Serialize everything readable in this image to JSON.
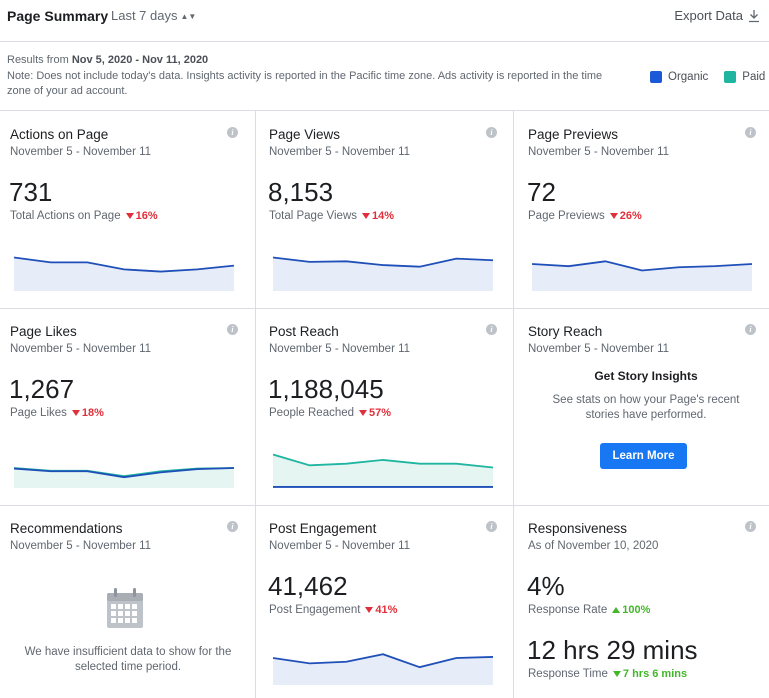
{
  "header": {
    "title": "Page Summary",
    "range": "Last 7 days",
    "export_label": "Export Data"
  },
  "note": {
    "results_prefix": "Results from",
    "results_range": "Nov 5, 2020 - Nov 11, 2020",
    "text": "Note: Does not include today's data. Insights activity is reported in the Pacific time zone. Ads activity is reported in the time zone of your ad account."
  },
  "legend": [
    {
      "label": "Organic",
      "color": "#1a5ad9"
    },
    {
      "label": "Paid",
      "color": "#1fb5a0"
    }
  ],
  "colors": {
    "organic_line": "#1f4fb8",
    "organic_fill": "#e6ecf8",
    "paid_line": "#1fb5a0",
    "paid_fill": "#e4f5f2",
    "accent": "#1877f2",
    "negative": "#e02f3a",
    "positive": "#42b72a"
  },
  "cards": {
    "actions": {
      "title": "Actions on Page",
      "subtitle": "November 5 - November 11",
      "value": "731",
      "label": "Total Actions on Page",
      "change": "16%",
      "direction": "down",
      "organic": [
        62,
        53,
        53,
        40,
        36,
        40,
        47
      ]
    },
    "views": {
      "title": "Page Views",
      "subtitle": "November 5 - November 11",
      "value": "8,153",
      "label": "Total Page Views",
      "change": "14%",
      "direction": "down",
      "organic": [
        62,
        54,
        55,
        48,
        45,
        60,
        57
      ]
    },
    "previews": {
      "title": "Page Previews",
      "subtitle": "November 5 - November 11",
      "value": "72",
      "label": "Page Previews",
      "change": "26%",
      "direction": "down",
      "organic": [
        50,
        46,
        55,
        38,
        44,
        46,
        50
      ]
    },
    "likes": {
      "title": "Page Likes",
      "subtitle": "November 5 - November 11",
      "value": "1,267",
      "label": "Page Likes",
      "change": "18%",
      "direction": "down",
      "organic": [
        36,
        31,
        31,
        20,
        29,
        35,
        37
      ],
      "paid": [
        37,
        32,
        32,
        22,
        31,
        36,
        37
      ]
    },
    "reach": {
      "title": "Post Reach",
      "subtitle": "November 5 - November 11",
      "value": "1,188,045",
      "label": "People Reached",
      "change": "57%",
      "direction": "down",
      "organic": [
        2,
        2,
        2,
        2,
        2,
        2,
        2
      ],
      "paid": [
        62,
        42,
        45,
        52,
        45,
        45,
        38
      ]
    },
    "story": {
      "title": "Story Reach",
      "subtitle": "November 5 - November 11",
      "heading": "Get Story Insights",
      "text": "See stats on how your Page's recent stories have performed.",
      "button": "Learn More"
    },
    "recommendations": {
      "title": "Recommendations",
      "subtitle": "November 5 - November 11",
      "text": "We have insufficient data to show for the selected time period."
    },
    "engagement": {
      "title": "Post Engagement",
      "subtitle": "November 5 - November 11",
      "value": "41,462",
      "label": "Post Engagement",
      "change": "41%",
      "direction": "down",
      "organic": [
        50,
        40,
        43,
        57,
        33,
        50,
        52
      ]
    },
    "responsiveness": {
      "title": "Responsiveness",
      "subtitle": "As of November 10, 2020",
      "rate_value": "4%",
      "rate_label": "Response Rate",
      "rate_change": "100%",
      "rate_direction": "up",
      "time_value": "12 hrs 29 mins",
      "time_label": "Response Time",
      "time_change": "7 hrs 6 mins",
      "time_direction": "down-good"
    }
  }
}
